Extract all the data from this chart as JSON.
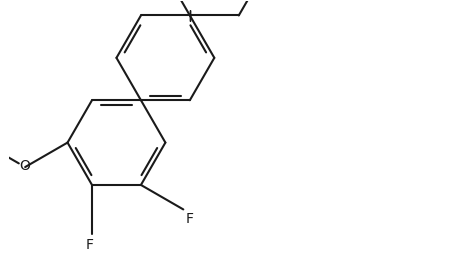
{
  "background_color": "#ffffff",
  "line_color": "#1a1a1a",
  "line_width": 1.5,
  "font_size": 10,
  "fig_width": 4.58,
  "fig_height": 2.54,
  "dpi": 100,
  "xlim": [
    0,
    9.0
  ],
  "ylim": [
    0,
    5.0
  ]
}
